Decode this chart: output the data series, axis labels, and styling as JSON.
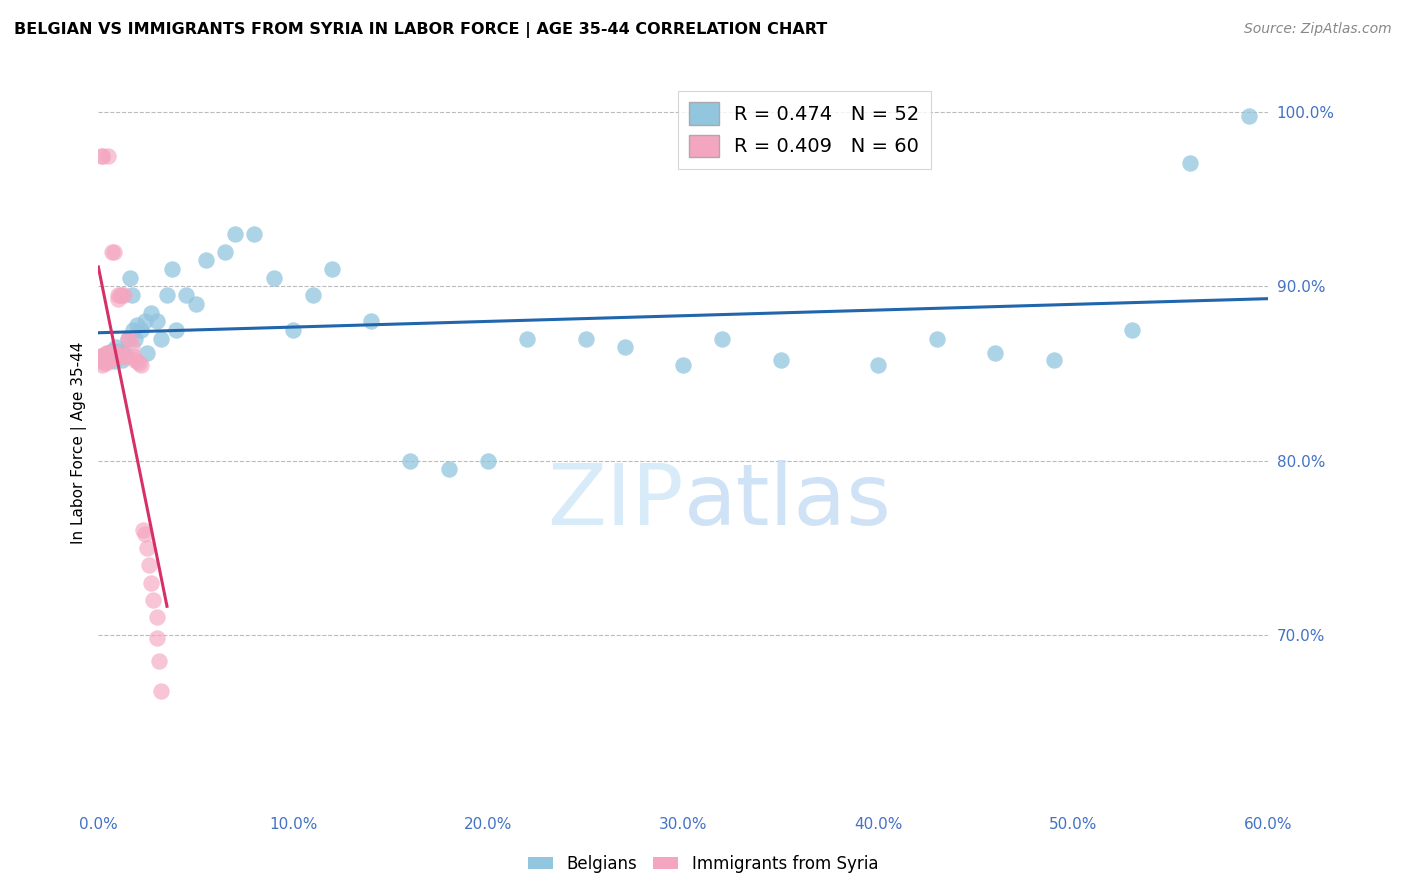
{
  "title": "BELGIAN VS IMMIGRANTS FROM SYRIA IN LABOR FORCE | AGE 35-44 CORRELATION CHART",
  "source": "Source: ZipAtlas.com",
  "ylabel": "In Labor Force | Age 35-44",
  "xlim": [
    0.0,
    0.6
  ],
  "ylim": [
    0.6,
    1.02
  ],
  "xticks": [
    0.0,
    0.1,
    0.2,
    0.3,
    0.4,
    0.5,
    0.6
  ],
  "xtick_labels": [
    "0.0%",
    "10.0%",
    "20.0%",
    "30.0%",
    "40.0%",
    "50.0%",
    "60.0%"
  ],
  "ytick_vals": [
    0.7,
    0.8,
    0.9,
    1.0
  ],
  "ytick_labels": [
    "70.0%",
    "80.0%",
    "90.0%",
    "100.0%"
  ],
  "blue_R": 0.474,
  "blue_N": 52,
  "pink_R": 0.409,
  "pink_N": 60,
  "blue_color": "#92c5de",
  "pink_color": "#f4a6c0",
  "blue_line_color": "#2166ac",
  "pink_line_color": "#d6306a",
  "watermark_left": "ZIP",
  "watermark_right": "atlas",
  "legend_blue_label": "Belgians",
  "legend_pink_label": "Immigrants from Syria",
  "blue_x": [
    0.004,
    0.005,
    0.006,
    0.007,
    0.008,
    0.009,
    0.01,
    0.011,
    0.012,
    0.013,
    0.015,
    0.016,
    0.017,
    0.018,
    0.019,
    0.02,
    0.022,
    0.024,
    0.025,
    0.027,
    0.03,
    0.032,
    0.035,
    0.038,
    0.04,
    0.045,
    0.05,
    0.055,
    0.065,
    0.07,
    0.08,
    0.09,
    0.1,
    0.11,
    0.12,
    0.14,
    0.16,
    0.18,
    0.2,
    0.22,
    0.25,
    0.27,
    0.3,
    0.32,
    0.35,
    0.4,
    0.43,
    0.46,
    0.49,
    0.53,
    0.56,
    0.59
  ],
  "blue_y": [
    0.86,
    0.862,
    0.858,
    0.863,
    0.857,
    0.865,
    0.86,
    0.863,
    0.858,
    0.862,
    0.87,
    0.905,
    0.895,
    0.875,
    0.87,
    0.878,
    0.875,
    0.88,
    0.862,
    0.885,
    0.88,
    0.87,
    0.895,
    0.91,
    0.875,
    0.895,
    0.89,
    0.915,
    0.92,
    0.93,
    0.93,
    0.905,
    0.875,
    0.895,
    0.91,
    0.88,
    0.8,
    0.795,
    0.8,
    0.87,
    0.87,
    0.865,
    0.855,
    0.87,
    0.858,
    0.855,
    0.87,
    0.862,
    0.858,
    0.875,
    0.971,
    0.998
  ],
  "pink_x": [
    0.001,
    0.001,
    0.002,
    0.002,
    0.002,
    0.002,
    0.003,
    0.003,
    0.003,
    0.003,
    0.003,
    0.004,
    0.004,
    0.004,
    0.004,
    0.004,
    0.005,
    0.005,
    0.005,
    0.005,
    0.005,
    0.006,
    0.006,
    0.006,
    0.007,
    0.007,
    0.007,
    0.008,
    0.008,
    0.008,
    0.009,
    0.009,
    0.01,
    0.01,
    0.01,
    0.011,
    0.011,
    0.012,
    0.012,
    0.013,
    0.013,
    0.014,
    0.015,
    0.016,
    0.017,
    0.018,
    0.019,
    0.02,
    0.021,
    0.022,
    0.023,
    0.024,
    0.025,
    0.026,
    0.027,
    0.028,
    0.03,
    0.03,
    0.031,
    0.032
  ],
  "pink_y": [
    0.86,
    0.858,
    0.975,
    0.975,
    0.86,
    0.855,
    0.86,
    0.858,
    0.856,
    0.86,
    0.858,
    0.862,
    0.86,
    0.858,
    0.857,
    0.856,
    0.975,
    0.862,
    0.86,
    0.858,
    0.857,
    0.862,
    0.86,
    0.858,
    0.92,
    0.862,
    0.86,
    0.92,
    0.862,
    0.86,
    0.862,
    0.86,
    0.895,
    0.893,
    0.86,
    0.895,
    0.86,
    0.895,
    0.86,
    0.895,
    0.86,
    0.86,
    0.87,
    0.87,
    0.865,
    0.86,
    0.858,
    0.857,
    0.856,
    0.855,
    0.76,
    0.758,
    0.75,
    0.74,
    0.73,
    0.72,
    0.71,
    0.698,
    0.685,
    0.668
  ]
}
